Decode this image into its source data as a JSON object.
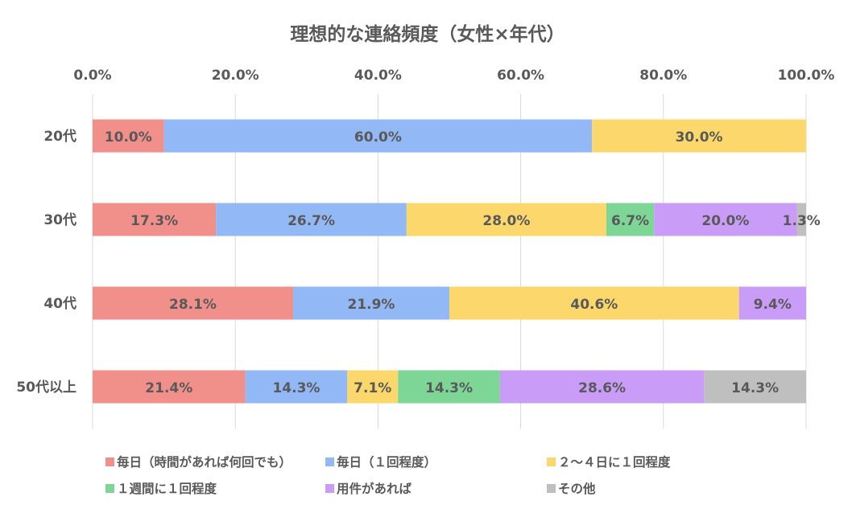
{
  "chart_data": {
    "type": "bar",
    "orientation": "horizontal",
    "stacked": "percent",
    "title": "理想的な連絡頻度（女性×年代）",
    "xlim": [
      0,
      100
    ],
    "x_ticks": [
      "0.0%",
      "20.0%",
      "40.0%",
      "60.0%",
      "80.0%",
      "100.0%"
    ],
    "grid": "vertical",
    "legend_position": "bottom",
    "categories": [
      "20代",
      "30代",
      "40代",
      "50代以上"
    ],
    "series": [
      {
        "name": "毎日（時間があれば何回でも）",
        "color": "#F1908A",
        "values": [
          10.0,
          17.3,
          28.1,
          21.4
        ],
        "labels": [
          "10.0%",
          "17.3%",
          "28.1%",
          "21.4%"
        ]
      },
      {
        "name": "毎日（１回程度）",
        "color": "#92B8F5",
        "values": [
          60.0,
          26.7,
          21.9,
          14.3
        ],
        "labels": [
          "60.0%",
          "26.7%",
          "21.9%",
          "14.3%"
        ]
      },
      {
        "name": "２～４日に１回程度",
        "color": "#FCD86C",
        "values": [
          30.0,
          28.0,
          40.6,
          7.1
        ],
        "labels": [
          "30.0%",
          "28.0%",
          "40.6%",
          "7.1%"
        ]
      },
      {
        "name": "１週間に１回程度",
        "color": "#7DD696",
        "values": [
          0,
          6.7,
          0,
          14.3
        ],
        "labels": [
          "",
          "6.7%",
          "",
          "14.3%"
        ]
      },
      {
        "name": "用件があれば",
        "color": "#C99CF7",
        "values": [
          0,
          20.0,
          9.4,
          28.6
        ],
        "labels": [
          "",
          "20.0%",
          "9.4%",
          "28.6%"
        ]
      },
      {
        "name": "その他",
        "color": "#BFBFBF",
        "values": [
          0,
          1.3,
          0,
          14.3
        ],
        "labels": [
          "",
          "1.3%",
          "",
          "14.3%"
        ]
      }
    ]
  }
}
